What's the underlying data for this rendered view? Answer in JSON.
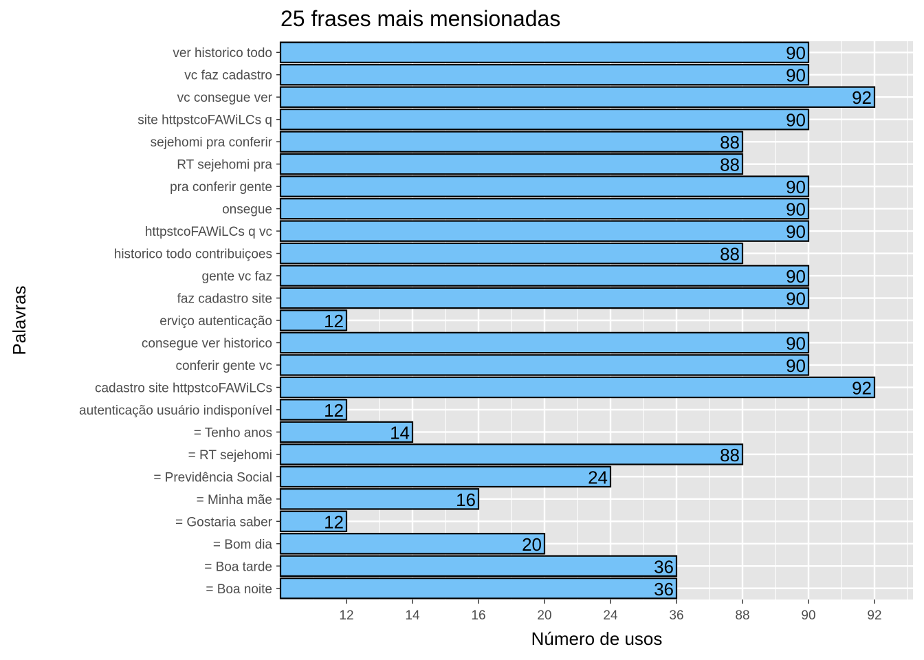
{
  "chart_data": {
    "type": "bar",
    "orientation": "horizontal",
    "title": "25 frases mais mensionadas",
    "xlabel": "Número de usos",
    "ylabel": "Palavras",
    "x_ticks": [
      "12",
      "14",
      "16",
      "20",
      "24",
      "36",
      "88",
      "90",
      "92"
    ],
    "categories": [
      "ver historico todo",
      "vc faz cadastro",
      "vc consegue ver",
      "site httpstcoFAWiLCs q",
      "sejehomi pra conferir",
      "RT sejehomi pra",
      "pra conferir gente",
      "onsegue",
      "httpstcoFAWiLCs q vc",
      "historico todo contribuiçoes",
      "gente vc faz",
      "faz cadastro site",
      "erviço autenticação",
      "consegue ver historico",
      "conferir gente vc",
      "cadastro site httpstcoFAWiLCs",
      "autenticação usuário indisponível",
      "= Tenho anos",
      "= RT sejehomi",
      "= Previdência Social",
      "= Minha mãe",
      "= Gostaria saber",
      "= Bom dia",
      "= Boa tarde",
      "= Boa noite"
    ],
    "values": [
      90,
      90,
      92,
      90,
      88,
      88,
      90,
      90,
      90,
      88,
      90,
      90,
      12,
      90,
      90,
      92,
      12,
      14,
      88,
      24,
      16,
      12,
      20,
      36,
      36
    ],
    "grid": true,
    "colors": {
      "bar_fill": "#75c2f8",
      "bar_stroke": "#000000",
      "panel_bg": "#e5e5e5",
      "grid": "#ffffff"
    }
  }
}
